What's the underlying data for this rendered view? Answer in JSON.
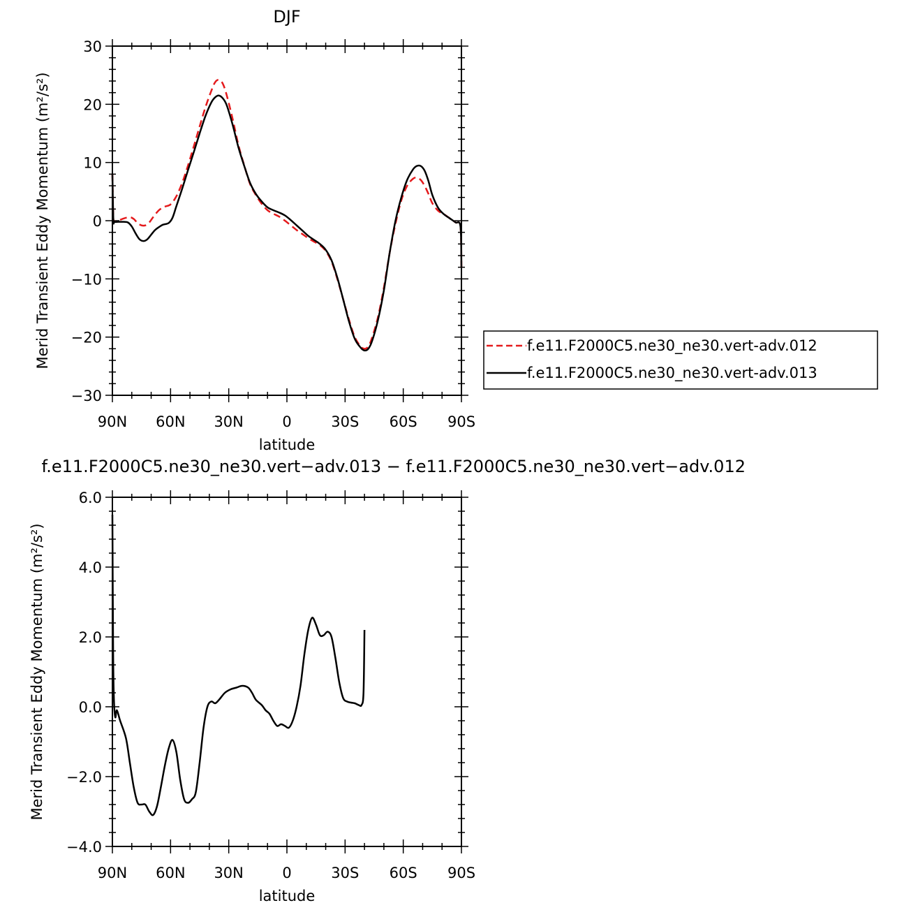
{
  "chart_data": [
    {
      "type": "line",
      "title": "DJF",
      "xlabel": "latitude",
      "ylabel": "Merid Transient Eddy Momentum (m²/s²)",
      "xlim": [
        -90,
        90
      ],
      "ylim": [
        -30,
        30
      ],
      "xticks": [
        -90,
        -60,
        -30,
        0,
        30,
        60,
        90
      ],
      "xtick_labels": [
        "90N",
        "60N",
        "30N",
        "0",
        "30S",
        "60S",
        "90S"
      ],
      "yticks": [
        -30,
        -20,
        -10,
        0,
        10,
        20,
        30
      ],
      "ytick_labels": [
        "−30",
        "−20",
        "−10",
        "0",
        "10",
        "20",
        "30"
      ],
      "legend_position": "right",
      "series": [
        {
          "name": "f.e11.F2000C5.ne30_ne30.vert-adv.012",
          "color": "#e41a1c",
          "dash": "dashed",
          "points": [
            [
              -90,
              8
            ],
            [
              -89.5,
              0.5
            ],
            [
              -89,
              -0.2
            ],
            [
              -87,
              0
            ],
            [
              -84,
              0.4
            ],
            [
              -81,
              0.6
            ],
            [
              -79,
              0.3
            ],
            [
              -77,
              -0.4
            ],
            [
              -75,
              -0.8
            ],
            [
              -73,
              -0.8
            ],
            [
              -71,
              -0.3
            ],
            [
              -69,
              0.6
            ],
            [
              -66,
              1.8
            ],
            [
              -63,
              2.4
            ],
            [
              -60,
              2.8
            ],
            [
              -57,
              4.2
            ],
            [
              -54,
              6.5
            ],
            [
              -51,
              9.5
            ],
            [
              -48,
              12.8
            ],
            [
              -45,
              16.2
            ],
            [
              -42,
              19.5
            ],
            [
              -39,
              22.3
            ],
            [
              -37,
              23.8
            ],
            [
              -35,
              24.2
            ],
            [
              -33,
              23.5
            ],
            [
              -31,
              21.5
            ],
            [
              -28,
              17.5
            ],
            [
              -25,
              13
            ],
            [
              -22,
              9.5
            ],
            [
              -19,
              6.3
            ],
            [
              -16,
              4.4
            ],
            [
              -13,
              2.9
            ],
            [
              -10,
              1.8
            ],
            [
              -7,
              1.2
            ],
            [
              -4,
              0.7
            ],
            [
              -1,
              0
            ],
            [
              2,
              -0.8
            ],
            [
              5,
              -1.6
            ],
            [
              8,
              -2.3
            ],
            [
              11,
              -3
            ],
            [
              14,
              -3.6
            ],
            [
              17,
              -4.2
            ],
            [
              20,
              -5.2
            ],
            [
              23,
              -7
            ],
            [
              26,
              -10
            ],
            [
              29,
              -13.5
            ],
            [
              32,
              -17
            ],
            [
              35,
              -20
            ],
            [
              38,
              -21.6
            ],
            [
              40,
              -22
            ],
            [
              42,
              -21.6
            ],
            [
              44,
              -20
            ],
            [
              47,
              -16.5
            ],
            [
              50,
              -11.5
            ],
            [
              53,
              -5.5
            ],
            [
              56,
              -0.5
            ],
            [
              59,
              3.5
            ],
            [
              62,
              6
            ],
            [
              65,
              7.2
            ],
            [
              67,
              7.4
            ],
            [
              69,
              7
            ],
            [
              71,
              6
            ],
            [
              73,
              4.6
            ],
            [
              75,
              3
            ],
            [
              78,
              1.7
            ],
            [
              81,
              1.1
            ],
            [
              84,
              0.4
            ],
            [
              87,
              -0.3
            ],
            [
              89.5,
              -1
            ],
            [
              90,
              -8
            ]
          ]
        },
        {
          "name": "f.e11.F2000C5.ne30_ne30.vert-adv.013",
          "color": "#000000",
          "dash": "solid",
          "points": [
            [
              -90,
              8
            ],
            [
              -89.5,
              0.2
            ],
            [
              -89,
              -0.2
            ],
            [
              -87,
              -0.2
            ],
            [
              -84,
              -0.2
            ],
            [
              -82,
              -0.3
            ],
            [
              -80,
              -1
            ],
            [
              -78,
              -2.2
            ],
            [
              -76,
              -3.2
            ],
            [
              -74,
              -3.5
            ],
            [
              -72,
              -3.2
            ],
            [
              -70,
              -2.4
            ],
            [
              -68,
              -1.6
            ],
            [
              -66,
              -1.1
            ],
            [
              -64,
              -0.7
            ],
            [
              -61,
              -0.4
            ],
            [
              -59,
              0.5
            ],
            [
              -57,
              2.5
            ],
            [
              -54,
              5.5
            ],
            [
              -51,
              8.7
            ],
            [
              -48,
              11.8
            ],
            [
              -45,
              15
            ],
            [
              -42,
              18
            ],
            [
              -39,
              20.3
            ],
            [
              -37,
              21.2
            ],
            [
              -35,
              21.5
            ],
            [
              -33,
              21
            ],
            [
              -31,
              19.8
            ],
            [
              -28,
              16.5
            ],
            [
              -25,
              12.6
            ],
            [
              -22,
              9.4
            ],
            [
              -19,
              6.5
            ],
            [
              -16,
              4.6
            ],
            [
              -13,
              3.3
            ],
            [
              -10,
              2.3
            ],
            [
              -7,
              1.8
            ],
            [
              -4,
              1.4
            ],
            [
              -1,
              0.9
            ],
            [
              2,
              0.1
            ],
            [
              5,
              -0.8
            ],
            [
              8,
              -1.7
            ],
            [
              11,
              -2.6
            ],
            [
              14,
              -3.3
            ],
            [
              17,
              -4
            ],
            [
              20,
              -5
            ],
            [
              23,
              -6.8
            ],
            [
              26,
              -9.8
            ],
            [
              29,
              -13.5
            ],
            [
              32,
              -17.3
            ],
            [
              35,
              -20.3
            ],
            [
              38,
              -21.8
            ],
            [
              40,
              -22.3
            ],
            [
              42,
              -22
            ],
            [
              44,
              -20.6
            ],
            [
              47,
              -17
            ],
            [
              50,
              -12
            ],
            [
              53,
              -5.5
            ],
            [
              56,
              0
            ],
            [
              59,
              4
            ],
            [
              62,
              7
            ],
            [
              65,
              8.8
            ],
            [
              67,
              9.4
            ],
            [
              69,
              9.4
            ],
            [
              71,
              8.6
            ],
            [
              73,
              6.8
            ],
            [
              75,
              4.4
            ],
            [
              78,
              2.2
            ],
            [
              81,
              1.1
            ],
            [
              84,
              0.4
            ],
            [
              87,
              -0.3
            ],
            [
              89.5,
              -1
            ],
            [
              90,
              -8
            ]
          ]
        }
      ]
    },
    {
      "type": "line",
      "title": "f.e11.F2000C5.ne30_ne30.vert−adv.013 − f.e11.F2000C5.ne30_ne30.vert−adv.012",
      "xlabel": "latitude",
      "ylabel": "Merid Transient Eddy Momentum (m²/s²)",
      "xlim": [
        -90,
        90
      ],
      "ylim": [
        -4,
        6
      ],
      "xticks": [
        -90,
        -60,
        -30,
        0,
        30,
        60,
        90
      ],
      "xtick_labels": [
        "90N",
        "60N",
        "30N",
        "0",
        "30S",
        "60S",
        "90S"
      ],
      "yticks": [
        -4,
        -2,
        0,
        2,
        4,
        6
      ],
      "ytick_labels": [
        "−4.0",
        "−2.0",
        "0.0",
        "2.0",
        "4.0",
        "6.0"
      ],
      "series": [
        {
          "color": "#000000",
          "dash": "solid",
          "points": [
            [
              -90,
              5.5
            ],
            [
              -89.6,
              1.5
            ],
            [
              -89.2,
              0.2
            ],
            [
              -88.5,
              -0.3
            ],
            [
              -87.7,
              -0.1
            ],
            [
              -86,
              -0.4
            ],
            [
              -83,
              -0.9
            ],
            [
              -81,
              -1.6
            ],
            [
              -79,
              -2.3
            ],
            [
              -77,
              -2.75
            ],
            [
              -75,
              -2.8
            ],
            [
              -73,
              -2.8
            ],
            [
              -71,
              -3
            ],
            [
              -69,
              -3.1
            ],
            [
              -67,
              -2.85
            ],
            [
              -65,
              -2.3
            ],
            [
              -63,
              -1.7
            ],
            [
              -61,
              -1.2
            ],
            [
              -59,
              -0.95
            ],
            [
              -57,
              -1.3
            ],
            [
              -55,
              -2.1
            ],
            [
              -53,
              -2.65
            ],
            [
              -51,
              -2.75
            ],
            [
              -49,
              -2.65
            ],
            [
              -47,
              -2.45
            ],
            [
              -45,
              -1.6
            ],
            [
              -43,
              -0.6
            ],
            [
              -41,
              0
            ],
            [
              -39,
              0.15
            ],
            [
              -37,
              0.1
            ],
            [
              -35,
              0.2
            ],
            [
              -32,
              0.4
            ],
            [
              -29,
              0.5
            ],
            [
              -26,
              0.55
            ],
            [
              -23,
              0.6
            ],
            [
              -20,
              0.55
            ],
            [
              -18,
              0.4
            ],
            [
              -16,
              0.2
            ],
            [
              -13,
              0.05
            ],
            [
              -11,
              -0.1
            ],
            [
              -9,
              -0.2
            ],
            [
              -7,
              -0.4
            ],
            [
              -5,
              -0.55
            ],
            [
              -3,
              -0.5
            ],
            [
              -1,
              -0.55
            ],
            [
              1,
              -0.6
            ],
            [
              3,
              -0.4
            ],
            [
              5,
              0
            ],
            [
              7,
              0.6
            ],
            [
              9,
              1.5
            ],
            [
              11,
              2.2
            ],
            [
              13,
              2.55
            ],
            [
              15,
              2.35
            ],
            [
              17,
              2.05
            ],
            [
              19,
              2.05
            ],
            [
              21,
              2.15
            ],
            [
              23,
              2
            ],
            [
              25,
              1.4
            ],
            [
              27,
              0.7
            ],
            [
              29,
              0.25
            ],
            [
              31,
              0.15
            ],
            [
              33,
              0.12
            ],
            [
              35,
              0.1
            ],
            [
              37,
              0.05
            ],
            [
              38.5,
              0.05
            ],
            [
              39.5,
              0.4
            ],
            [
              40,
              2.2
            ]
          ]
        }
      ]
    }
  ]
}
